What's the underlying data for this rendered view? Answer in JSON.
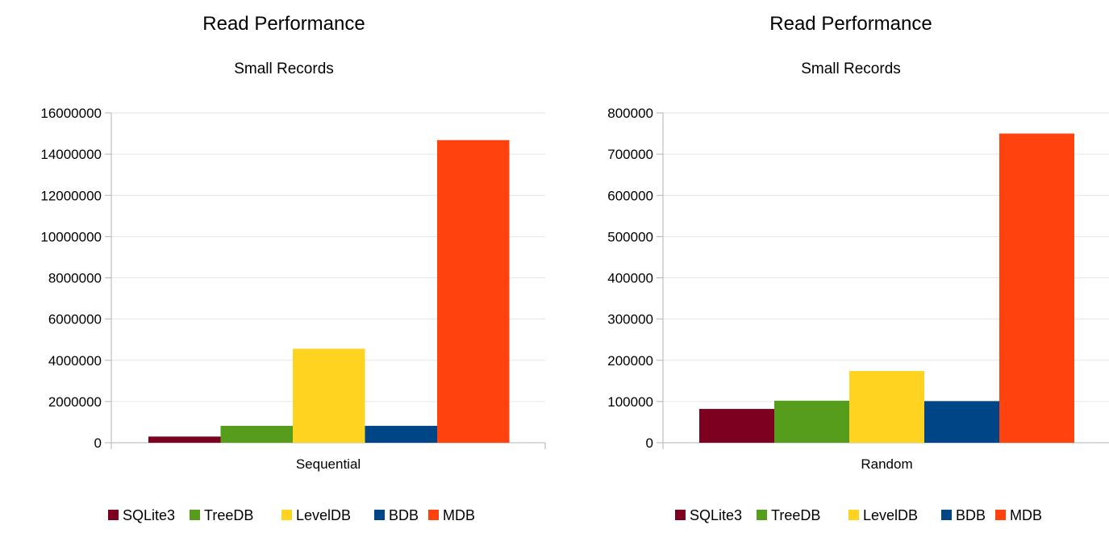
{
  "colors": {
    "SQLite3": "#7e0021",
    "TreeDB": "#579d1c",
    "LevelDB": "#ffd320",
    "BDB": "#004586",
    "MDB": "#ff420e",
    "grid": "#e6e6e6",
    "axis": "#b3b3b3"
  },
  "chart_data": [
    {
      "type": "bar",
      "title": "Read Performance",
      "subtitle": "Small Records",
      "categories": [
        "Sequential"
      ],
      "series": [
        {
          "name": "SQLite3",
          "values": [
            300000
          ]
        },
        {
          "name": "TreeDB",
          "values": [
            820000
          ]
        },
        {
          "name": "LevelDB",
          "values": [
            4560000
          ]
        },
        {
          "name": "BDB",
          "values": [
            820000
          ]
        },
        {
          "name": "MDB",
          "values": [
            14680000
          ]
        }
      ],
      "ylim": [
        0,
        16000000
      ],
      "yticks": [
        0,
        2000000,
        4000000,
        6000000,
        8000000,
        10000000,
        12000000,
        14000000,
        16000000
      ],
      "ytick_labels": [
        "0",
        "2000000",
        "4000000",
        "6000000",
        "8000000",
        "10000000",
        "12000000",
        "14000000",
        "16000000"
      ],
      "grid": true,
      "legend": "bottom"
    },
    {
      "type": "bar",
      "title": "Read Performance",
      "subtitle": "Small Records",
      "categories": [
        "Random"
      ],
      "series": [
        {
          "name": "SQLite3",
          "values": [
            82000
          ]
        },
        {
          "name": "TreeDB",
          "values": [
            102000
          ]
        },
        {
          "name": "LevelDB",
          "values": [
            174000
          ]
        },
        {
          "name": "BDB",
          "values": [
            101000
          ]
        },
        {
          "name": "MDB",
          "values": [
            750000
          ]
        }
      ],
      "ylim": [
        0,
        800000
      ],
      "yticks": [
        0,
        100000,
        200000,
        300000,
        400000,
        500000,
        600000,
        700000,
        800000
      ],
      "ytick_labels": [
        "0",
        "100000",
        "200000",
        "300000",
        "400000",
        "500000",
        "600000",
        "700000",
        "800000"
      ],
      "grid": true,
      "legend": "bottom"
    }
  ]
}
